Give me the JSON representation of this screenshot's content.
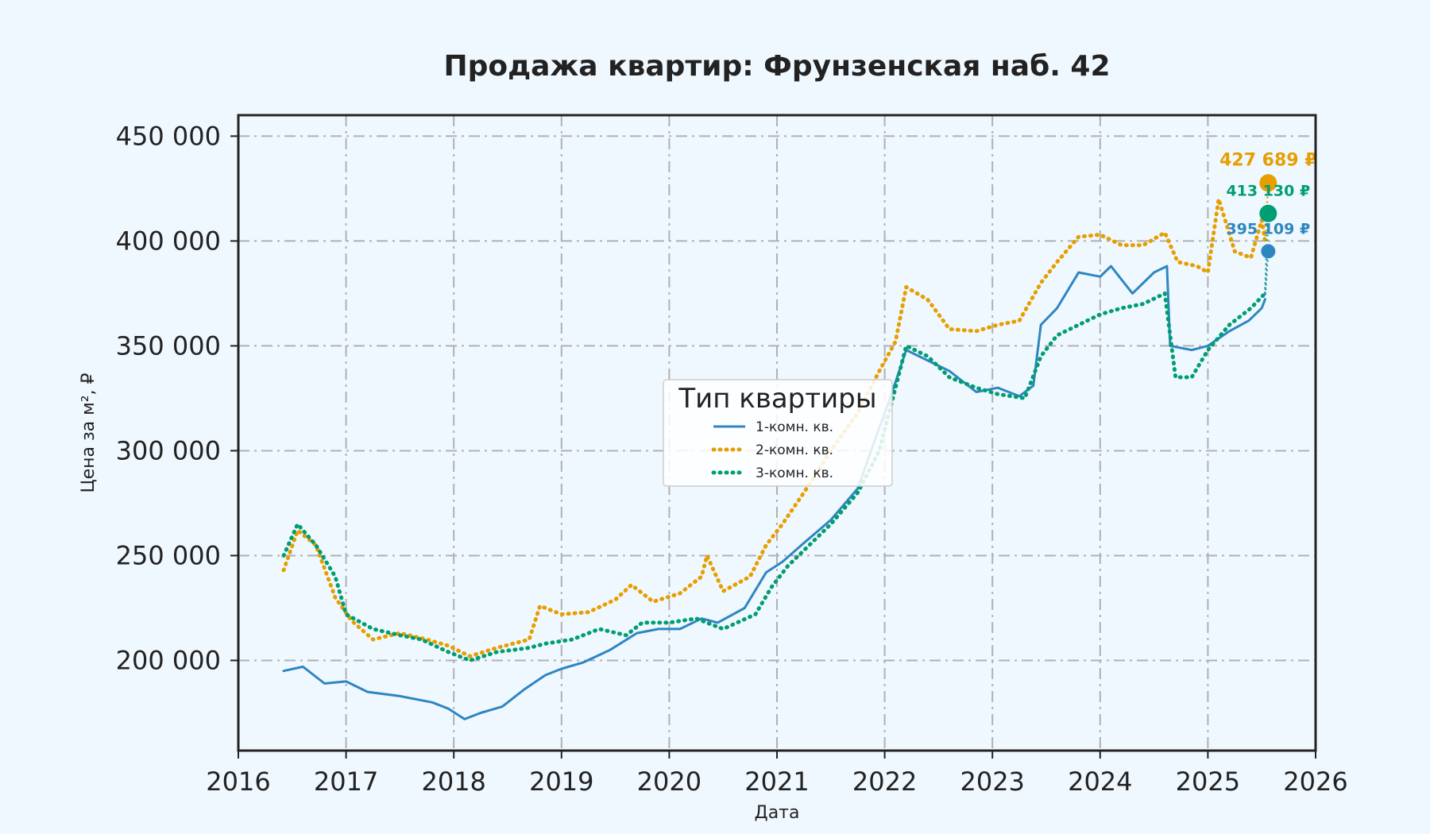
{
  "chart_data": {
    "type": "line",
    "title": "Продажа квартир: Фрунзенская наб. 42",
    "xlabel": "Дата",
    "ylabel": "Цена за м², ₽",
    "xlim": [
      2016,
      2026
    ],
    "ylim": [
      157000,
      460000
    ],
    "x_ticks": [
      2016,
      2017,
      2018,
      2019,
      2020,
      2021,
      2022,
      2023,
      2024,
      2025,
      2026
    ],
    "x_tick_labels": [
      "2016",
      "2017",
      "2018",
      "2019",
      "2020",
      "2021",
      "2022",
      "2023",
      "2024",
      "2025",
      "2026"
    ],
    "y_ticks": [
      200000,
      250000,
      300000,
      350000,
      400000,
      450000
    ],
    "y_tick_labels": [
      "200 000",
      "250 000",
      "300 000",
      "350 000",
      "400 000",
      "450 000"
    ],
    "grid": true,
    "legend": {
      "title": "Тип квартиры",
      "position": "center",
      "entries": [
        "1-комн. кв.",
        "2-комн. кв.",
        "3-комн. кв."
      ]
    },
    "series": [
      {
        "name": "1-комн. кв.",
        "color": "#2e86c1",
        "style": "solid",
        "points": [
          [
            2016.42,
            195000
          ],
          [
            2016.6,
            197000
          ],
          [
            2016.8,
            189000
          ],
          [
            2017.0,
            190000
          ],
          [
            2017.2,
            185000
          ],
          [
            2017.5,
            183000
          ],
          [
            2017.8,
            180000
          ],
          [
            2017.95,
            177000
          ],
          [
            2018.1,
            172000
          ],
          [
            2018.25,
            175000
          ],
          [
            2018.45,
            178000
          ],
          [
            2018.65,
            186000
          ],
          [
            2018.85,
            193000
          ],
          [
            2019.0,
            196000
          ],
          [
            2019.2,
            199000
          ],
          [
            2019.45,
            205000
          ],
          [
            2019.7,
            213000
          ],
          [
            2019.9,
            215000
          ],
          [
            2020.1,
            215000
          ],
          [
            2020.3,
            220000
          ],
          [
            2020.45,
            218000
          ],
          [
            2020.7,
            225000
          ],
          [
            2020.9,
            242000
          ],
          [
            2021.05,
            247000
          ],
          [
            2021.25,
            256000
          ],
          [
            2021.5,
            267000
          ],
          [
            2021.75,
            282000
          ],
          [
            2021.95,
            311000
          ],
          [
            2022.05,
            325000
          ],
          [
            2022.2,
            348000
          ],
          [
            2022.4,
            343000
          ],
          [
            2022.6,
            338000
          ],
          [
            2022.85,
            328000
          ],
          [
            2023.05,
            330000
          ],
          [
            2023.25,
            326000
          ],
          [
            2023.38,
            331000
          ],
          [
            2023.45,
            360000
          ],
          [
            2023.6,
            368000
          ],
          [
            2023.8,
            385000
          ],
          [
            2024.0,
            383000
          ],
          [
            2024.1,
            388000
          ],
          [
            2024.3,
            375000
          ],
          [
            2024.5,
            385000
          ],
          [
            2024.62,
            388000
          ],
          [
            2024.65,
            350000
          ],
          [
            2024.85,
            348000
          ],
          [
            2025.0,
            350000
          ],
          [
            2025.2,
            357000
          ],
          [
            2025.38,
            362000
          ],
          [
            2025.5,
            368000
          ],
          [
            2025.53,
            372000
          ]
        ],
        "last_value": 395109,
        "last_label": "395 109 ₽"
      },
      {
        "name": "2-комн. кв.",
        "color": "#e69f00",
        "style": "dotted",
        "points": [
          [
            2016.42,
            243000
          ],
          [
            2016.55,
            262000
          ],
          [
            2016.72,
            255000
          ],
          [
            2016.9,
            230000
          ],
          [
            2017.05,
            219000
          ],
          [
            2017.25,
            210000
          ],
          [
            2017.5,
            213000
          ],
          [
            2017.75,
            210000
          ],
          [
            2017.95,
            207000
          ],
          [
            2018.15,
            202000
          ],
          [
            2018.4,
            206000
          ],
          [
            2018.7,
            210000
          ],
          [
            2018.8,
            226000
          ],
          [
            2019.0,
            222000
          ],
          [
            2019.25,
            223000
          ],
          [
            2019.5,
            229000
          ],
          [
            2019.65,
            236000
          ],
          [
            2019.85,
            228000
          ],
          [
            2020.1,
            232000
          ],
          [
            2020.3,
            240000
          ],
          [
            2020.35,
            250000
          ],
          [
            2020.5,
            233000
          ],
          [
            2020.75,
            240000
          ],
          [
            2020.9,
            255000
          ],
          [
            2021.05,
            265000
          ],
          [
            2021.25,
            280000
          ],
          [
            2021.5,
            300000
          ],
          [
            2021.75,
            318000
          ],
          [
            2021.95,
            338000
          ],
          [
            2022.1,
            352000
          ],
          [
            2022.2,
            378000
          ],
          [
            2022.4,
            372000
          ],
          [
            2022.6,
            358000
          ],
          [
            2022.85,
            357000
          ],
          [
            2023.05,
            360000
          ],
          [
            2023.25,
            362000
          ],
          [
            2023.45,
            380000
          ],
          [
            2023.6,
            390000
          ],
          [
            2023.8,
            402000
          ],
          [
            2024.0,
            403000
          ],
          [
            2024.2,
            398000
          ],
          [
            2024.4,
            398000
          ],
          [
            2024.6,
            404000
          ],
          [
            2024.72,
            390000
          ],
          [
            2024.9,
            388000
          ],
          [
            2025.0,
            385000
          ],
          [
            2025.1,
            420000
          ],
          [
            2025.25,
            395000
          ],
          [
            2025.4,
            392000
          ],
          [
            2025.5,
            410000
          ],
          [
            2025.53,
            400000
          ]
        ],
        "last_value": 427689,
        "last_label": "427 689 ₽"
      },
      {
        "name": "3-комн. кв.",
        "color": "#009e73",
        "style": "dotted",
        "points": [
          [
            2016.42,
            250000
          ],
          [
            2016.55,
            265000
          ],
          [
            2016.72,
            255000
          ],
          [
            2016.9,
            240000
          ],
          [
            2017.0,
            222000
          ],
          [
            2017.25,
            215000
          ],
          [
            2017.5,
            212000
          ],
          [
            2017.7,
            210000
          ],
          [
            2017.95,
            204000
          ],
          [
            2018.15,
            200000
          ],
          [
            2018.4,
            204000
          ],
          [
            2018.7,
            206000
          ],
          [
            2018.85,
            208000
          ],
          [
            2019.1,
            210000
          ],
          [
            2019.35,
            215000
          ],
          [
            2019.6,
            212000
          ],
          [
            2019.75,
            218000
          ],
          [
            2020.0,
            218000
          ],
          [
            2020.25,
            220000
          ],
          [
            2020.5,
            215000
          ],
          [
            2020.8,
            222000
          ],
          [
            2020.95,
            235000
          ],
          [
            2021.1,
            245000
          ],
          [
            2021.3,
            255000
          ],
          [
            2021.5,
            265000
          ],
          [
            2021.75,
            280000
          ],
          [
            2021.95,
            300000
          ],
          [
            2022.1,
            330000
          ],
          [
            2022.2,
            350000
          ],
          [
            2022.4,
            345000
          ],
          [
            2022.6,
            335000
          ],
          [
            2022.85,
            330000
          ],
          [
            2023.05,
            327000
          ],
          [
            2023.3,
            325000
          ],
          [
            2023.45,
            345000
          ],
          [
            2023.6,
            355000
          ],
          [
            2023.8,
            360000
          ],
          [
            2024.0,
            365000
          ],
          [
            2024.2,
            368000
          ],
          [
            2024.4,
            370000
          ],
          [
            2024.6,
            375000
          ],
          [
            2024.7,
            335000
          ],
          [
            2024.85,
            335000
          ],
          [
            2025.0,
            348000
          ],
          [
            2025.2,
            360000
          ],
          [
            2025.4,
            368000
          ],
          [
            2025.53,
            375000
          ]
        ],
        "last_value": 413130,
        "last_label": "413 130 ₽"
      }
    ],
    "endpoint_x": 2025.56
  }
}
